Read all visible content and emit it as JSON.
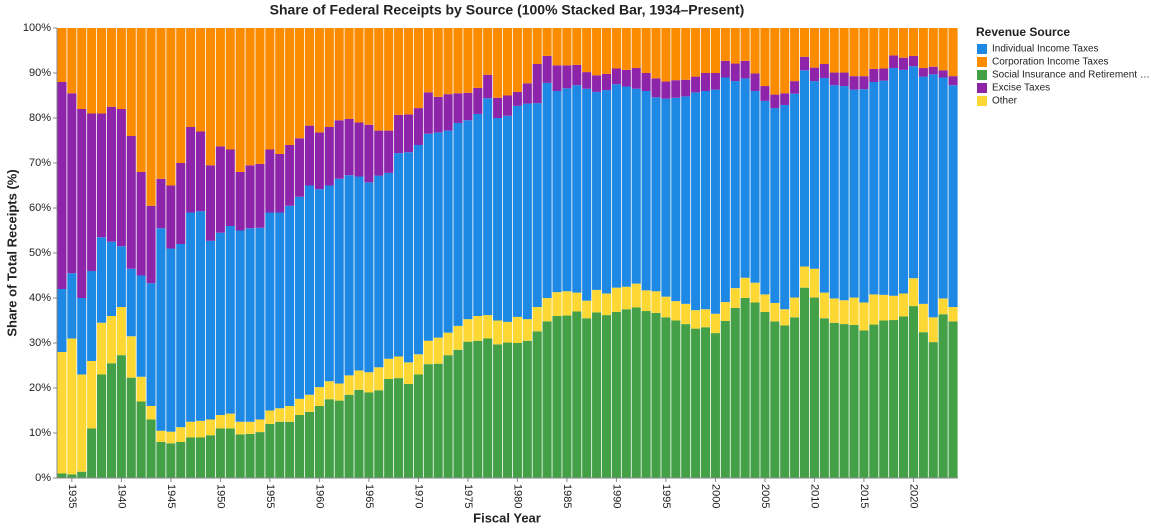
{
  "chart_data": {
    "type": "stacked_bar_100",
    "title": "Share of Federal Receipts by Source (100% Stacked Bar, 1934–Present)",
    "x_label": "Fiscal Year",
    "y_label": "Share of Total Receipts (%)",
    "legend_title": "Revenue Source",
    "legend": "top-right",
    "x": [
      1934,
      1935,
      1936,
      1937,
      1938,
      1939,
      1940,
      1941,
      1942,
      1943,
      1944,
      1945,
      1946,
      1947,
      1948,
      1949,
      1950,
      1951,
      1952,
      1953,
      1954,
      1955,
      1956,
      1957,
      1958,
      1959,
      1960,
      1961,
      1962,
      1963,
      1964,
      1965,
      1966,
      1967,
      1968,
      1969,
      1970,
      1971,
      1972,
      1973,
      1974,
      1975,
      1976,
      1977,
      1978,
      1979,
      1980,
      1981,
      1982,
      1983,
      1984,
      1985,
      1986,
      1987,
      1988,
      1989,
      1990,
      1991,
      1992,
      1993,
      1994,
      1995,
      1996,
      1997,
      1998,
      1999,
      2000,
      2001,
      2002,
      2003,
      2004,
      2005,
      2006,
      2007,
      2008,
      2009,
      2010,
      2011,
      2012,
      2013,
      2014,
      2015,
      2016,
      2017,
      2018,
      2019,
      2020,
      2021,
      2022,
      2023,
      2024
    ],
    "xlim": [
      1933.5,
      2024.5
    ],
    "xticks": [
      1935,
      1940,
      1945,
      1950,
      1955,
      1960,
      1965,
      1970,
      1975,
      1980,
      1985,
      1990,
      1995,
      2000,
      2005,
      2010,
      2015,
      2020
    ],
    "ylim": [
      0,
      100
    ],
    "yticks": [
      {
        "value": 0,
        "label": "0%"
      },
      {
        "value": 10,
        "label": "10%"
      },
      {
        "value": 20,
        "label": "20%"
      },
      {
        "value": 30,
        "label": "30%"
      },
      {
        "value": 40,
        "label": "40%"
      },
      {
        "value": 50,
        "label": "50%"
      },
      {
        "value": 60,
        "label": "60%"
      },
      {
        "value": 70,
        "label": "70%"
      },
      {
        "value": 80,
        "label": "80%"
      },
      {
        "value": 90,
        "label": "90%"
      },
      {
        "value": 100,
        "label": "100%"
      }
    ],
    "series": [
      {
        "name": "Individual Income Taxes",
        "color": "#1e88e5",
        "values": [
          14.0,
          14.5,
          17.0,
          20.0,
          19.0,
          16.5,
          13.5,
          15.0,
          22.5,
          27.3,
          45.0,
          40.7,
          40.7,
          46.5,
          46.6,
          39.7,
          40.5,
          41.7,
          42.5,
          43.0,
          42.6,
          44.0,
          43.5,
          44.5,
          44.9,
          46.5,
          44.0,
          43.5,
          45.5,
          44.5,
          43.1,
          42.2,
          42.6,
          41.3,
          45.2,
          46.7,
          46.5,
          46.0,
          45.6,
          44.9,
          45.1,
          44.2,
          44.9,
          48.2,
          45.0,
          45.8,
          46.9,
          47.9,
          45.3,
          47.8,
          44.7,
          45.1,
          46.1,
          47.1,
          44.0,
          45.2,
          45.2,
          44.5,
          43.3,
          44.3,
          43.1,
          44.0,
          45.2,
          46.1,
          48.4,
          48.5,
          49.8,
          49.9,
          46.0,
          44.3,
          42.6,
          43.0,
          43.3,
          45.4,
          45.3,
          43.6,
          41.7,
          47.7,
          47.4,
          47.6,
          46.2,
          47.4,
          47.2,
          47.6,
          50.6,
          49.7,
          47.1,
          50.5,
          54.0,
          49.1,
          49.3
        ]
      },
      {
        "name": "Corporation Income Taxes",
        "color": "#fb8c00",
        "values": [
          12.0,
          14.5,
          18.0,
          19.0,
          19.0,
          17.5,
          18.0,
          24.0,
          32.0,
          39.5,
          33.5,
          35.0,
          30.0,
          22.0,
          23.0,
          30.5,
          26.3,
          27.0,
          32.0,
          30.5,
          30.2,
          27.0,
          28.0,
          26.0,
          24.5,
          21.7,
          23.2,
          22.0,
          20.5,
          20.2,
          21.0,
          21.5,
          22.8,
          22.8,
          19.3,
          19.2,
          17.8,
          14.3,
          15.3,
          14.7,
          14.5,
          14.4,
          13.3,
          10.4,
          15.5,
          15.0,
          14.2,
          12.3,
          8.0,
          6.2,
          8.3,
          8.3,
          8.2,
          9.8,
          10.5,
          10.2,
          9.0,
          9.3,
          8.9,
          10.0,
          11.2,
          11.9,
          11.6,
          11.5,
          10.8,
          10.0,
          10.0,
          7.3,
          7.9,
          7.3,
          10.1,
          12.9,
          14.8,
          14.5,
          11.8,
          6.4,
          8.8,
          8.0,
          9.9,
          9.9,
          10.7,
          10.7,
          9.1,
          9.0,
          6.1,
          6.6,
          6.2,
          8.9,
          8.6,
          9.4,
          10.7
        ]
      },
      {
        "name": "Social Insurance and Retirement …",
        "color": "#43a047",
        "values": [
          1.0,
          0.8,
          1.4,
          11.0,
          23.0,
          25.5,
          27.3,
          22.3,
          17.0,
          13.0,
          8.0,
          7.7,
          8.0,
          9.0,
          9.0,
          9.5,
          11.0,
          11.0,
          9.7,
          9.8,
          10.2,
          12.0,
          12.5,
          12.5,
          14.0,
          14.7,
          16.0,
          17.5,
          17.2,
          18.5,
          19.6,
          19.0,
          19.5,
          22.0,
          22.2,
          20.9,
          23.0,
          25.3,
          25.4,
          27.3,
          28.5,
          30.3,
          30.5,
          31.0,
          29.7,
          30.1,
          30.0,
          30.5,
          32.6,
          34.8,
          36.0,
          36.1,
          37.0,
          35.5,
          36.8,
          36.2,
          36.9,
          37.5,
          37.9,
          37.1,
          36.7,
          35.7,
          35.0,
          34.2,
          33.2,
          33.5,
          32.2,
          34.9,
          37.8,
          40.0,
          39.0,
          36.9,
          34.8,
          33.9,
          35.7,
          42.3,
          40.1,
          35.5,
          34.5,
          34.2,
          34.0,
          32.8,
          34.1,
          35.0,
          35.1,
          35.9,
          38.2,
          32.4,
          30.2,
          36.4,
          34.8
        ]
      },
      {
        "name": "Excise Taxes",
        "color": "#8e24aa",
        "values": [
          46.0,
          40.0,
          42.0,
          35.0,
          27.5,
          30.0,
          30.5,
          29.5,
          23.0,
          17.2,
          11.0,
          14.0,
          18.0,
          19.0,
          17.7,
          16.8,
          19.2,
          17.0,
          13.0,
          14.0,
          14.2,
          14.0,
          13.0,
          13.5,
          13.0,
          13.3,
          12.6,
          13.0,
          13.0,
          12.5,
          12.0,
          12.8,
          10.0,
          9.4,
          8.5,
          8.4,
          8.2,
          9.2,
          7.9,
          8.1,
          6.6,
          6.1,
          5.8,
          5.2,
          4.5,
          4.5,
          3.1,
          4.5,
          8.7,
          6.0,
          5.7,
          5.1,
          4.5,
          3.7,
          3.7,
          3.6,
          3.5,
          3.7,
          4.6,
          4.0,
          4.2,
          3.8,
          3.9,
          3.7,
          3.5,
          4.0,
          3.7,
          3.7,
          3.9,
          3.9,
          3.9,
          3.3,
          3.0,
          2.6,
          2.8,
          3.0,
          3.0,
          3.1,
          2.8,
          3.0,
          3.0,
          2.9,
          2.9,
          2.7,
          2.8,
          2.7,
          2.3,
          1.9,
          1.7,
          1.6,
          2.0
        ]
      },
      {
        "name": "Other",
        "color": "#fdd835",
        "values": [
          27.0,
          30.2,
          21.6,
          15.0,
          11.5,
          10.5,
          10.7,
          9.2,
          5.5,
          3.0,
          2.5,
          2.6,
          3.3,
          3.5,
          3.7,
          3.5,
          3.0,
          3.3,
          2.8,
          2.7,
          2.8,
          3.0,
          3.0,
          3.5,
          3.6,
          3.8,
          4.2,
          4.0,
          3.8,
          4.3,
          4.3,
          4.5,
          5.1,
          4.5,
          4.8,
          4.8,
          4.5,
          5.2,
          5.8,
          5.0,
          5.3,
          5.0,
          5.5,
          5.2,
          5.3,
          4.6,
          5.8,
          4.8,
          5.4,
          5.2,
          5.3,
          5.4,
          4.2,
          3.9,
          5.0,
          4.8,
          5.4,
          5.0,
          5.3,
          4.6,
          4.8,
          4.6,
          4.3,
          4.5,
          4.1,
          4.0,
          4.3,
          4.2,
          4.4,
          4.5,
          4.4,
          3.9,
          4.1,
          3.6,
          4.4,
          4.7,
          6.4,
          5.7,
          5.4,
          5.3,
          6.1,
          6.2,
          6.7,
          5.7,
          5.4,
          5.1,
          6.2,
          6.3,
          5.5,
          3.5,
          3.2
        ]
      }
    ]
  }
}
